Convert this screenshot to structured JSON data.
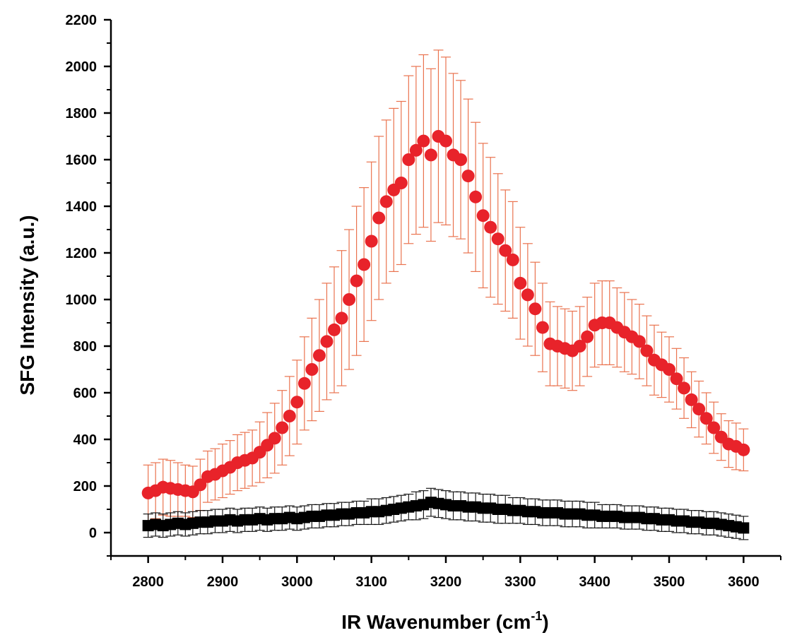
{
  "chart_data": {
    "type": "scatter",
    "xlabel": "IR Wavenumber (cm",
    "xlabel_sup": "-1",
    "xlabel_close": ")",
    "ylabel": "SFG Intensity (a.u.)",
    "xlim": [
      2750,
      3650
    ],
    "ylim": [
      -100,
      2200
    ],
    "x_ticks": [
      2800,
      2900,
      3000,
      3100,
      3200,
      3300,
      3400,
      3500,
      3600
    ],
    "y_ticks": [
      0,
      200,
      400,
      600,
      800,
      1000,
      1200,
      1400,
      1600,
      1800,
      2000,
      2200
    ],
    "grid": false,
    "legend": "none",
    "series": [
      {
        "color": "#e8232a",
        "errbar_color": "#e8643c",
        "marker": "circle",
        "points": [
          [
            2800,
            170,
            120
          ],
          [
            2810,
            180,
            120
          ],
          [
            2820,
            195,
            120
          ],
          [
            2830,
            190,
            120
          ],
          [
            2840,
            185,
            115
          ],
          [
            2850,
            180,
            110
          ],
          [
            2860,
            175,
            110
          ],
          [
            2870,
            205,
            110
          ],
          [
            2880,
            240,
            110
          ],
          [
            2890,
            250,
            110
          ],
          [
            2900,
            265,
            115
          ],
          [
            2910,
            280,
            115
          ],
          [
            2920,
            300,
            120
          ],
          [
            2930,
            310,
            120
          ],
          [
            2940,
            320,
            120
          ],
          [
            2950,
            345,
            130
          ],
          [
            2960,
            375,
            140
          ],
          [
            2970,
            405,
            150
          ],
          [
            2980,
            450,
            160
          ],
          [
            2990,
            500,
            170
          ],
          [
            3000,
            560,
            180
          ],
          [
            3010,
            640,
            200
          ],
          [
            3020,
            700,
            220
          ],
          [
            3030,
            760,
            240
          ],
          [
            3040,
            820,
            250
          ],
          [
            3050,
            870,
            270
          ],
          [
            3060,
            920,
            290
          ],
          [
            3070,
            1000,
            300
          ],
          [
            3080,
            1080,
            320
          ],
          [
            3090,
            1150,
            330
          ],
          [
            3100,
            1250,
            340
          ],
          [
            3110,
            1350,
            350
          ],
          [
            3120,
            1420,
            350
          ],
          [
            3130,
            1470,
            350
          ],
          [
            3140,
            1500,
            350
          ],
          [
            3150,
            1600,
            360
          ],
          [
            3160,
            1640,
            360
          ],
          [
            3170,
            1680,
            370
          ],
          [
            3180,
            1620,
            370
          ],
          [
            3190,
            1700,
            370
          ],
          [
            3200,
            1680,
            360
          ],
          [
            3210,
            1620,
            350
          ],
          [
            3220,
            1600,
            340
          ],
          [
            3230,
            1530,
            330
          ],
          [
            3240,
            1440,
            320
          ],
          [
            3250,
            1360,
            310
          ],
          [
            3260,
            1310,
            300
          ],
          [
            3270,
            1260,
            280
          ],
          [
            3280,
            1210,
            260
          ],
          [
            3290,
            1170,
            250
          ],
          [
            3300,
            1070,
            240
          ],
          [
            3310,
            1020,
            220
          ],
          [
            3320,
            960,
            200
          ],
          [
            3330,
            880,
            190
          ],
          [
            3340,
            810,
            180
          ],
          [
            3350,
            800,
            170
          ],
          [
            3360,
            790,
            170
          ],
          [
            3370,
            780,
            170
          ],
          [
            3380,
            800,
            170
          ],
          [
            3390,
            840,
            170
          ],
          [
            3400,
            890,
            180
          ],
          [
            3410,
            900,
            180
          ],
          [
            3420,
            900,
            180
          ],
          [
            3430,
            880,
            170
          ],
          [
            3440,
            860,
            170
          ],
          [
            3450,
            840,
            160
          ],
          [
            3460,
            820,
            160
          ],
          [
            3470,
            780,
            150
          ],
          [
            3480,
            740,
            150
          ],
          [
            3490,
            720,
            140
          ],
          [
            3500,
            700,
            140
          ],
          [
            3510,
            660,
            130
          ],
          [
            3520,
            620,
            130
          ],
          [
            3530,
            570,
            120
          ],
          [
            3540,
            530,
            120
          ],
          [
            3550,
            490,
            110
          ],
          [
            3560,
            450,
            110
          ],
          [
            3570,
            410,
            100
          ],
          [
            3580,
            380,
            100
          ],
          [
            3590,
            370,
            100
          ],
          [
            3600,
            355,
            90
          ]
        ]
      },
      {
        "color": "#000000",
        "errbar_color": "#000000",
        "marker": "square",
        "points": [
          [
            2800,
            30,
            50
          ],
          [
            2810,
            35,
            50
          ],
          [
            2820,
            30,
            50
          ],
          [
            2830,
            35,
            50
          ],
          [
            2840,
            40,
            50
          ],
          [
            2850,
            35,
            50
          ],
          [
            2860,
            40,
            50
          ],
          [
            2870,
            45,
            50
          ],
          [
            2880,
            45,
            50
          ],
          [
            2890,
            50,
            50
          ],
          [
            2900,
            50,
            50
          ],
          [
            2910,
            55,
            50
          ],
          [
            2920,
            50,
            50
          ],
          [
            2930,
            55,
            50
          ],
          [
            2940,
            55,
            50
          ],
          [
            2950,
            60,
            50
          ],
          [
            2960,
            55,
            50
          ],
          [
            2970,
            60,
            50
          ],
          [
            2980,
            60,
            50
          ],
          [
            2990,
            65,
            50
          ],
          [
            3000,
            60,
            50
          ],
          [
            3010,
            65,
            50
          ],
          [
            3020,
            70,
            50
          ],
          [
            3030,
            70,
            50
          ],
          [
            3040,
            75,
            50
          ],
          [
            3050,
            75,
            50
          ],
          [
            3060,
            80,
            50
          ],
          [
            3070,
            80,
            50
          ],
          [
            3080,
            85,
            50
          ],
          [
            3090,
            85,
            50
          ],
          [
            3100,
            90,
            55
          ],
          [
            3110,
            90,
            55
          ],
          [
            3120,
            95,
            55
          ],
          [
            3130,
            100,
            55
          ],
          [
            3140,
            105,
            55
          ],
          [
            3150,
            110,
            55
          ],
          [
            3160,
            115,
            60
          ],
          [
            3170,
            120,
            60
          ],
          [
            3180,
            130,
            60
          ],
          [
            3190,
            125,
            60
          ],
          [
            3200,
            120,
            60
          ],
          [
            3210,
            115,
            60
          ],
          [
            3220,
            115,
            60
          ],
          [
            3230,
            110,
            60
          ],
          [
            3240,
            110,
            60
          ],
          [
            3250,
            105,
            60
          ],
          [
            3260,
            105,
            60
          ],
          [
            3270,
            100,
            60
          ],
          [
            3280,
            100,
            60
          ],
          [
            3290,
            95,
            55
          ],
          [
            3300,
            95,
            55
          ],
          [
            3310,
            90,
            55
          ],
          [
            3320,
            90,
            55
          ],
          [
            3330,
            85,
            55
          ],
          [
            3340,
            85,
            55
          ],
          [
            3350,
            85,
            55
          ],
          [
            3360,
            80,
            55
          ],
          [
            3370,
            80,
            55
          ],
          [
            3380,
            80,
            55
          ],
          [
            3390,
            75,
            55
          ],
          [
            3400,
            75,
            55
          ],
          [
            3410,
            70,
            50
          ],
          [
            3420,
            70,
            50
          ],
          [
            3430,
            70,
            50
          ],
          [
            3440,
            65,
            50
          ],
          [
            3450,
            65,
            50
          ],
          [
            3460,
            65,
            50
          ],
          [
            3470,
            60,
            50
          ],
          [
            3480,
            60,
            50
          ],
          [
            3490,
            55,
            50
          ],
          [
            3500,
            55,
            50
          ],
          [
            3510,
            50,
            50
          ],
          [
            3520,
            50,
            50
          ],
          [
            3530,
            45,
            50
          ],
          [
            3540,
            45,
            50
          ],
          [
            3550,
            40,
            50
          ],
          [
            3560,
            40,
            50
          ],
          [
            3570,
            35,
            50
          ],
          [
            3580,
            30,
            50
          ],
          [
            3590,
            25,
            50
          ],
          [
            3600,
            20,
            50
          ]
        ]
      }
    ]
  }
}
